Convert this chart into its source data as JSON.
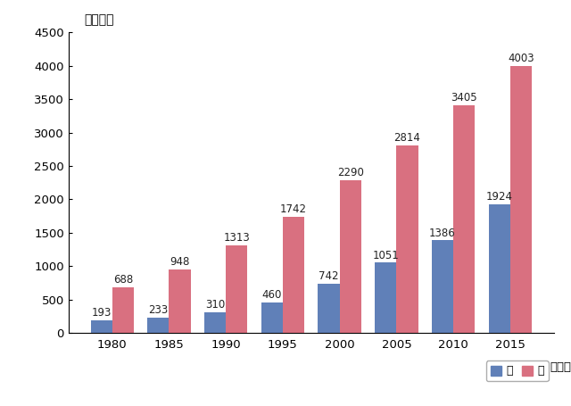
{
  "years": [
    1980,
    1985,
    1990,
    1995,
    2000,
    2005,
    2010,
    2015
  ],
  "male_values": [
    193,
    233,
    310,
    460,
    742,
    1051,
    1386,
    1924
  ],
  "female_values": [
    688,
    948,
    1313,
    1742,
    2290,
    2814,
    3405,
    4003
  ],
  "male_color": "#6080b8",
  "female_color": "#d97080",
  "ylim": [
    0,
    4500
  ],
  "yticks": [
    0,
    500,
    1000,
    1500,
    2000,
    2500,
    3000,
    3500,
    4000,
    4500
  ],
  "ylabel": "（千人）",
  "xlabel_suffix": "（年）",
  "legend_male": "男",
  "legend_female": "女",
  "bar_width": 0.38,
  "label_fontsize": 8.5,
  "axis_fontsize": 9.5,
  "legend_fontsize": 9,
  "ylabel_fontsize": 10
}
